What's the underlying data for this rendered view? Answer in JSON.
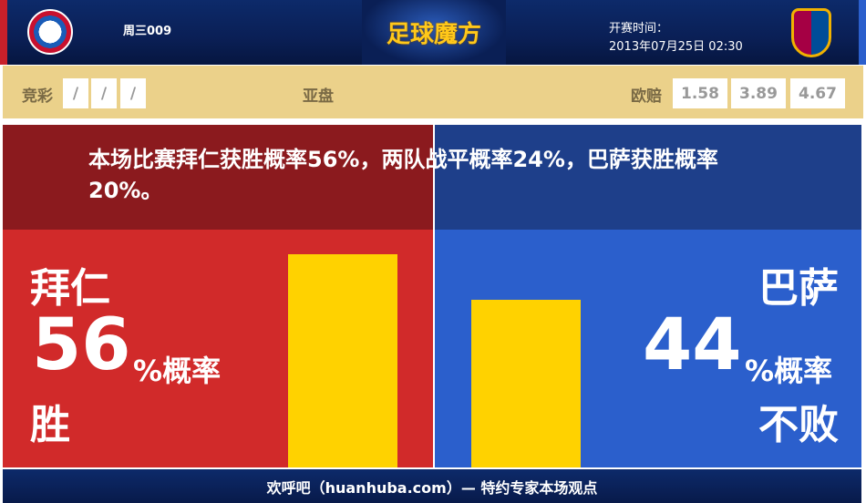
{
  "header": {
    "home_team_logo": "FC Bayern München",
    "away_team_logo": "FC Barcelona",
    "match_no": "周三009",
    "brand": "足球魔方",
    "kickoff_label": "开赛时间：",
    "kickoff_time": "2013年07月25日 02:30"
  },
  "odds": {
    "jingcai_label": "竞彩",
    "jingcai": [
      "/",
      "/",
      "/"
    ],
    "asian_label": "亚盘",
    "euro_label": "欧赔",
    "euro": [
      "1.58",
      "3.89",
      "4.67"
    ]
  },
  "summary": "本场比赛拜仁获胜概率56%，两队战平概率24%，巴萨获胜概率20%。",
  "home": {
    "name": "拜仁",
    "pct": "56",
    "pct_suffix": "%概率",
    "outcome": "胜",
    "bar_value": 56
  },
  "away": {
    "name": "巴萨",
    "pct": "44",
    "pct_suffix": "%概率",
    "outcome": "不败",
    "bar_value": 44
  },
  "colors": {
    "home": "#d12a2a",
    "away": "#2b5fcc",
    "bar": "#ffd200"
  },
  "footer": "欢呼吧（huanhuba.com）— 特约专家本场观点"
}
